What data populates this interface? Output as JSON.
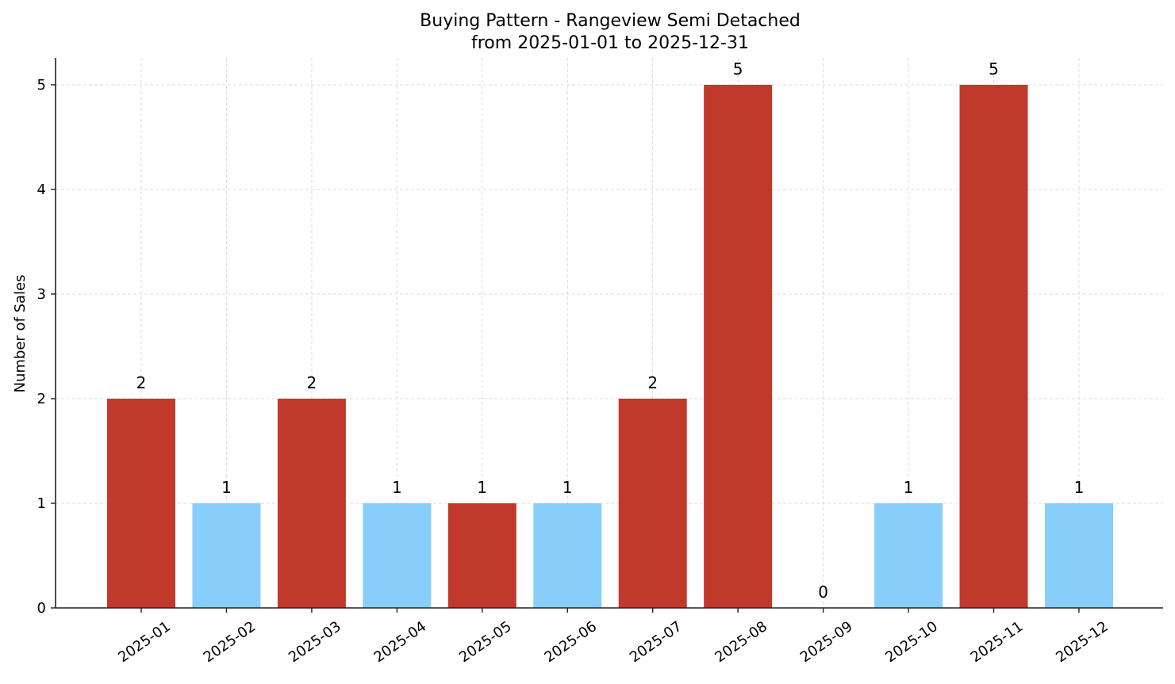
{
  "chart_data": {
    "type": "bar",
    "title": "Buying Pattern - Rangeview Semi Detached",
    "subtitle": "from 2025-01-01 to 2025-12-31",
    "xlabel": "",
    "ylabel": "Number of Sales",
    "categories": [
      "2025-01",
      "2025-02",
      "2025-03",
      "2025-04",
      "2025-05",
      "2025-06",
      "2025-07",
      "2025-08",
      "2025-09",
      "2025-10",
      "2025-11",
      "2025-12"
    ],
    "values": [
      2,
      1,
      2,
      1,
      1,
      1,
      2,
      5,
      0,
      1,
      5,
      1
    ],
    "bar_colors": [
      "#c0392b",
      "#87cefa",
      "#c0392b",
      "#87cefa",
      "#c0392b",
      "#87cefa",
      "#c0392b",
      "#c0392b",
      "#87cefa",
      "#87cefa",
      "#c0392b",
      "#87cefa"
    ],
    "ylim": [
      0,
      5.25
    ],
    "yticks": [
      0,
      1,
      2,
      3,
      4,
      5
    ],
    "grid": true,
    "legend": null,
    "data_labels": true
  },
  "colors": {
    "high": "#c0392b",
    "low": "#87cefa",
    "grid": "#d3d3d3",
    "axis": "#222222"
  }
}
